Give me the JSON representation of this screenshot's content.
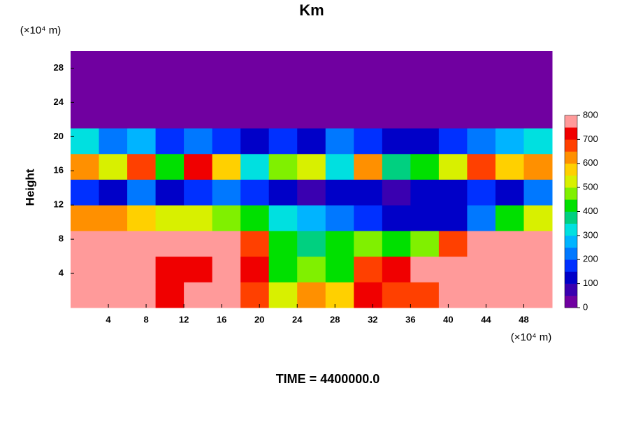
{
  "chart_data": {
    "type": "heatmap",
    "title": "Km",
    "ylabel": "Height",
    "y_unit": "(×10⁴ m)",
    "x_unit": "(×10⁴ m)",
    "footer": "TIME = 4400000.0",
    "xlim": [
      0,
      51
    ],
    "ylim": [
      0,
      30
    ],
    "xticks": [
      4,
      8,
      12,
      16,
      20,
      24,
      28,
      32,
      36,
      40,
      44,
      48
    ],
    "yticks": [
      4,
      8,
      12,
      16,
      20,
      24,
      28
    ],
    "xbins": [
      0,
      3,
      6,
      9,
      12,
      15,
      18,
      21,
      24,
      27,
      30,
      33,
      36,
      39,
      42,
      45,
      48,
      51
    ],
    "ybins": [
      0,
      3,
      6,
      9,
      12,
      15,
      18,
      21,
      24,
      27,
      30
    ],
    "z": [
      [
        800,
        800,
        750,
        700,
        750,
        750,
        650,
        500,
        600,
        550,
        700,
        650,
        650,
        750,
        800,
        800,
        800
      ],
      [
        800,
        800,
        750,
        700,
        700,
        800,
        700,
        400,
        450,
        400,
        650,
        700,
        750,
        800,
        750,
        800,
        800
      ],
      [
        800,
        750,
        750,
        800,
        750,
        800,
        650,
        400,
        350,
        400,
        450,
        400,
        450,
        650,
        800,
        800,
        800
      ],
      [
        600,
        600,
        550,
        500,
        500,
        450,
        400,
        300,
        250,
        200,
        150,
        100,
        100,
        100,
        200,
        400,
        500
      ],
      [
        150,
        100,
        200,
        100,
        150,
        200,
        150,
        100,
        50,
        100,
        100,
        50,
        100,
        100,
        150,
        100,
        200
      ],
      [
        600,
        500,
        650,
        400,
        700,
        550,
        300,
        450,
        500,
        300,
        600,
        350,
        400,
        500,
        650,
        550,
        600
      ],
      [
        300,
        200,
        250,
        150,
        200,
        150,
        100,
        150,
        100,
        200,
        150,
        100,
        100,
        150,
        200,
        250,
        300
      ],
      [
        0,
        0,
        0,
        0,
        0,
        0,
        0,
        0,
        0,
        0,
        0,
        0,
        0,
        0,
        0,
        0,
        0
      ],
      [
        0,
        0,
        0,
        0,
        0,
        0,
        0,
        0,
        0,
        0,
        0,
        0,
        0,
        0,
        0,
        0,
        0
      ],
      [
        0,
        0,
        0,
        0,
        0,
        0,
        0,
        0,
        0,
        0,
        0,
        0,
        0,
        0,
        0,
        0,
        0
      ]
    ],
    "zlim": [
      0,
      800
    ],
    "colorbar_ticks": [
      0,
      100,
      200,
      300,
      400,
      500,
      600,
      700,
      800
    ],
    "colors": [
      "#7000a0",
      "#3a00b0",
      "#0000c8",
      "#0030ff",
      "#0078ff",
      "#00b4ff",
      "#00e0e0",
      "#00d080",
      "#00e000",
      "#80f000",
      "#d8f000",
      "#ffd000",
      "#ff9000",
      "#ff4000",
      "#f00000",
      "#ff9a9a"
    ]
  }
}
